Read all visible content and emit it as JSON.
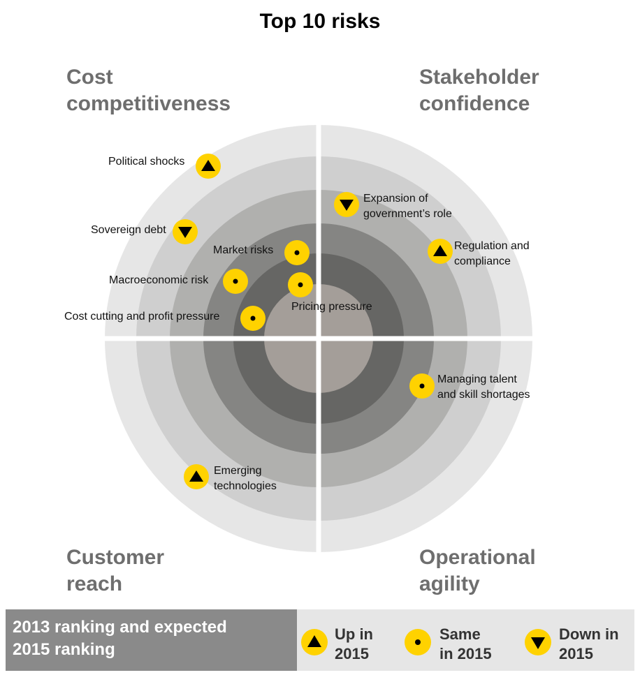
{
  "title": "Top 10 risks",
  "quadrants": {
    "cost": "Cost\ncompetitiveness",
    "stakeholder": "Stakeholder\nconfidence",
    "customer": "Customer\nreach",
    "operational": "Operational\nagility"
  },
  "risks": [
    {
      "label": "Political shocks",
      "trend": "up"
    },
    {
      "label": "Sovereign debt",
      "trend": "down"
    },
    {
      "label": "Market risks",
      "trend": "same"
    },
    {
      "label": "Macroeconomic risk",
      "trend": "same"
    },
    {
      "label": "Pricing pressure",
      "trend": "same"
    },
    {
      "label": "Cost cutting and profit  pressure",
      "trend": "same"
    },
    {
      "label": "Expansion of\ngovernment’s role",
      "trend": "down"
    },
    {
      "label": "Regulation and\ncompliance",
      "trend": "up"
    },
    {
      "label": "Managing talent\nand skill shortages",
      "trend": "same"
    },
    {
      "label": "Emerging\ntechnologies",
      "trend": "up"
    }
  ],
  "legend": {
    "title": "2013 ranking and expected\n2015 ranking",
    "up": "Up in\n2015",
    "same": "Same\nin 2015",
    "down": "Down in\n2015"
  },
  "colors": {
    "ring_outer": "#e6e6e6",
    "ring_2": "#cfcfcf",
    "ring_3": "#b0b0ae",
    "ring_4": "#858583",
    "ring_5": "#666664",
    "ring_core": "#a49e99",
    "marker": "#ffd200"
  }
}
